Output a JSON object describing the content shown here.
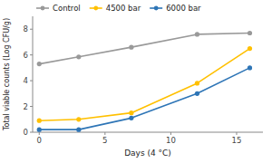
{
  "chart_data": {
    "type": "line",
    "xlabel": "Days (4 °C)",
    "ylabel": "Total viable counts (Log CFU/g)",
    "x": [
      0,
      3,
      7,
      12,
      16
    ],
    "series": [
      {
        "name": "Control",
        "color": "#999999",
        "values": [
          5.3,
          5.85,
          6.6,
          7.6,
          7.7
        ]
      },
      {
        "name": "4500 bar",
        "color": "#FFC000",
        "values": [
          0.9,
          1.0,
          1.5,
          3.8,
          6.5
        ]
      },
      {
        "name": "6000 bar",
        "color": "#2E75B6",
        "values": [
          0.2,
          0.2,
          1.1,
          3.0,
          5.0
        ]
      }
    ],
    "xlim": [
      -0.5,
      17
    ],
    "xticks": [
      0,
      5,
      10,
      15
    ],
    "ylim": [
      0,
      9
    ],
    "yticks": [
      0,
      2,
      4,
      6,
      8
    ],
    "marker": "circle",
    "grid": false,
    "legend": "upper left"
  }
}
